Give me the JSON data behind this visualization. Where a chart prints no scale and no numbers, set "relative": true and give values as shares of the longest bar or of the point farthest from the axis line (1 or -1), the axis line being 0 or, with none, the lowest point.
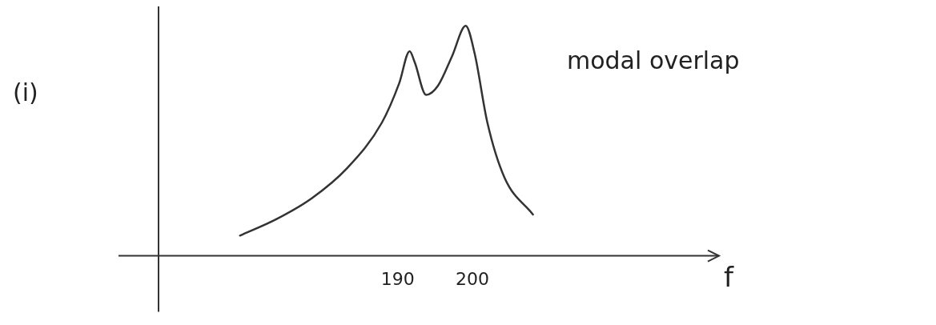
{
  "chart_data": {
    "type": "line",
    "relative": true,
    "xlabel": "f",
    "annotations": [
      "(i)",
      "modal overlap"
    ],
    "xlim": [
      158,
      233
    ],
    "xticks": [
      190,
      200
    ],
    "grid": false,
    "legend": false,
    "marker": "none",
    "line_style": "solid",
    "series": [
      {
        "color": "#333333",
        "x": [
          168.9,
          173.8,
          178.5,
          183.2,
          187.9,
          190.2,
          191.6,
          192.3,
          193.8,
          195.4,
          197.3,
          199.1,
          200.3,
          202.0,
          204.3,
          208.1
        ],
        "values": [
          0.088,
          0.16,
          0.25,
          0.38,
          0.58,
          0.75,
          0.89,
          0.84,
          0.7,
          0.74,
          0.87,
          1,
          0.88,
          0.58,
          0.34,
          0.18
        ]
      }
    ]
  }
}
